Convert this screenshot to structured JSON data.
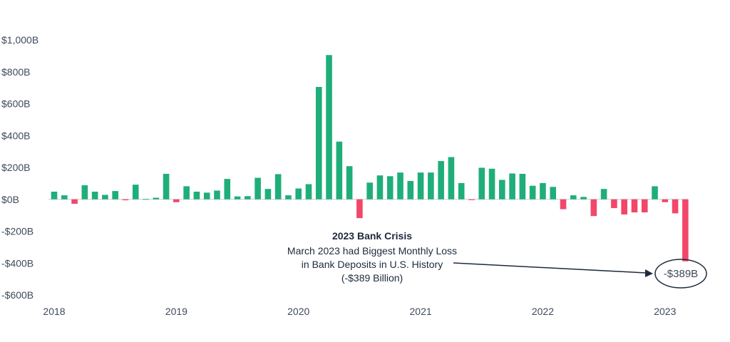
{
  "chart_data": {
    "type": "bar",
    "title": "",
    "xlabel": "",
    "ylabel": "",
    "ylim": [
      -600,
      1000
    ],
    "y_ticks": [
      1000,
      800,
      600,
      400,
      200,
      0,
      -200,
      -400,
      -600
    ],
    "y_tick_labels": [
      "$1,000B",
      "$800B",
      "$600B",
      "$400B",
      "$200B",
      "$0B",
      "-$200B",
      "-$400B",
      "-$600B"
    ],
    "x_tick_labels": [
      "2018",
      "2019",
      "2020",
      "2021",
      "2022",
      "2023"
    ],
    "grid": false,
    "positive_color": "#1fae7a",
    "negative_color": "#f2476a",
    "series": [
      {
        "values": [
          {
            "date": "2018-01",
            "value": 48
          },
          {
            "date": "2018-02",
            "value": 25
          },
          {
            "date": "2018-03",
            "value": -28
          },
          {
            "date": "2018-04",
            "value": 88
          },
          {
            "date": "2018-05",
            "value": 48
          },
          {
            "date": "2018-06",
            "value": 28
          },
          {
            "date": "2018-07",
            "value": 52
          },
          {
            "date": "2018-08",
            "value": -6
          },
          {
            "date": "2018-09",
            "value": 92
          },
          {
            "date": "2018-10",
            "value": 2
          },
          {
            "date": "2018-11",
            "value": 10
          },
          {
            "date": "2018-12",
            "value": 160
          },
          {
            "date": "2019-01",
            "value": -18
          },
          {
            "date": "2019-02",
            "value": 82
          },
          {
            "date": "2019-03",
            "value": 48
          },
          {
            "date": "2019-04",
            "value": 42
          },
          {
            "date": "2019-05",
            "value": 55
          },
          {
            "date": "2019-06",
            "value": 128
          },
          {
            "date": "2019-07",
            "value": 18
          },
          {
            "date": "2019-08",
            "value": 20
          },
          {
            "date": "2019-09",
            "value": 135
          },
          {
            "date": "2019-10",
            "value": 65
          },
          {
            "date": "2019-11",
            "value": 158
          },
          {
            "date": "2019-12",
            "value": 25
          },
          {
            "date": "2020-01",
            "value": 68
          },
          {
            "date": "2020-02",
            "value": 95
          },
          {
            "date": "2020-03",
            "value": 705
          },
          {
            "date": "2020-04",
            "value": 905
          },
          {
            "date": "2020-05",
            "value": 362
          },
          {
            "date": "2020-06",
            "value": 208
          },
          {
            "date": "2020-07",
            "value": -118
          },
          {
            "date": "2020-08",
            "value": 105
          },
          {
            "date": "2020-09",
            "value": 150
          },
          {
            "date": "2020-10",
            "value": 145
          },
          {
            "date": "2020-11",
            "value": 168
          },
          {
            "date": "2020-12",
            "value": 115
          },
          {
            "date": "2021-01",
            "value": 168
          },
          {
            "date": "2021-02",
            "value": 168
          },
          {
            "date": "2021-03",
            "value": 240
          },
          {
            "date": "2021-04",
            "value": 265
          },
          {
            "date": "2021-05",
            "value": 102
          },
          {
            "date": "2021-06",
            "value": -5
          },
          {
            "date": "2021-07",
            "value": 198
          },
          {
            "date": "2021-08",
            "value": 192
          },
          {
            "date": "2021-09",
            "value": 122
          },
          {
            "date": "2021-10",
            "value": 162
          },
          {
            "date": "2021-11",
            "value": 160
          },
          {
            "date": "2021-12",
            "value": 85
          },
          {
            "date": "2022-01",
            "value": 102
          },
          {
            "date": "2022-02",
            "value": 78
          },
          {
            "date": "2022-03",
            "value": -62
          },
          {
            "date": "2022-04",
            "value": 25
          },
          {
            "date": "2022-05",
            "value": 15
          },
          {
            "date": "2022-06",
            "value": -105
          },
          {
            "date": "2022-07",
            "value": 65
          },
          {
            "date": "2022-08",
            "value": -55
          },
          {
            "date": "2022-09",
            "value": -95
          },
          {
            "date": "2022-10",
            "value": -82
          },
          {
            "date": "2022-11",
            "value": -82
          },
          {
            "date": "2022-12",
            "value": 82
          },
          {
            "date": "2023-01",
            "value": -18
          },
          {
            "date": "2023-02",
            "value": -88
          },
          {
            "date": "2023-03",
            "value": -389
          }
        ]
      }
    ],
    "annotations": {
      "title": "2023 Bank Crisis",
      "lines": [
        "March 2023 had Biggest Monthly Loss",
        "in Bank Deposits in U.S. History",
        "(-$389 Billion)"
      ],
      "callout_label": "-$389B"
    }
  }
}
